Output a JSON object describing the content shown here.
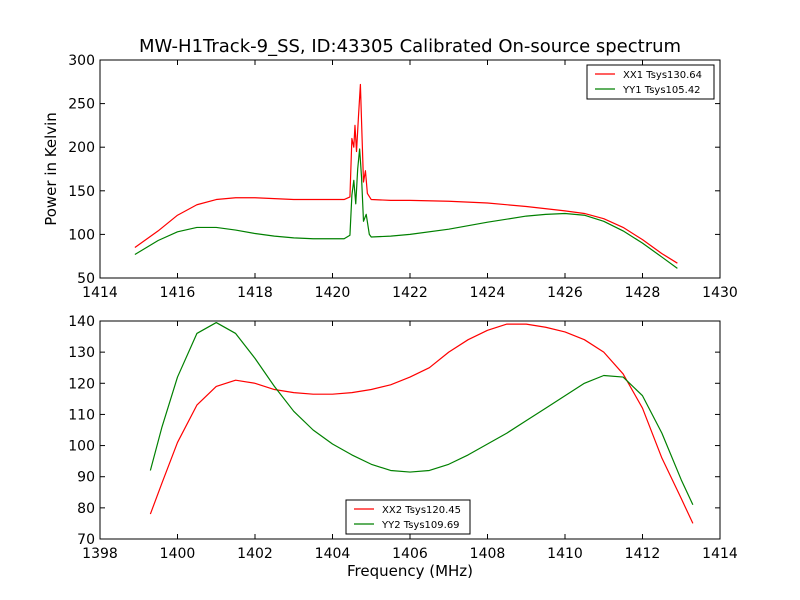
{
  "colors": {
    "xx": "#ff0000",
    "yy": "#008000"
  },
  "chart_data": [
    {
      "type": "line",
      "title": "MW-H1Track-9_SS, ID:43305 Calibrated On-source spectrum",
      "xlabel": "",
      "ylabel": "Power in Kelvin",
      "xlim": [
        1414,
        1430
      ],
      "ylim": [
        50,
        300
      ],
      "xticks": [
        1414,
        1416,
        1418,
        1420,
        1422,
        1424,
        1426,
        1428,
        1430
      ],
      "yticks": [
        50,
        100,
        150,
        200,
        250,
        300
      ],
      "legend_position": "top-right",
      "series": [
        {
          "name": "XX1 Tsys130.64",
          "color": "#ff0000",
          "points": [
            [
              1414.9,
              85
            ],
            [
              1415.5,
              104
            ],
            [
              1416.0,
              122
            ],
            [
              1416.5,
              134
            ],
            [
              1417.0,
              140
            ],
            [
              1417.5,
              142
            ],
            [
              1418.0,
              142
            ],
            [
              1418.5,
              141
            ],
            [
              1419.0,
              140
            ],
            [
              1419.5,
              140
            ],
            [
              1420.0,
              140
            ],
            [
              1420.3,
              140
            ],
            [
              1420.45,
              143
            ],
            [
              1420.5,
              210
            ],
            [
              1420.55,
              200
            ],
            [
              1420.58,
              225
            ],
            [
              1420.62,
              195
            ],
            [
              1420.67,
              235
            ],
            [
              1420.72,
              272
            ],
            [
              1420.76,
              215
            ],
            [
              1420.8,
              160
            ],
            [
              1420.85,
              173
            ],
            [
              1420.9,
              147
            ],
            [
              1421.0,
              140
            ],
            [
              1421.5,
              139
            ],
            [
              1422.0,
              139
            ],
            [
              1423.0,
              138
            ],
            [
              1424.0,
              136
            ],
            [
              1425.0,
              132
            ],
            [
              1426.0,
              127
            ],
            [
              1426.5,
              124
            ],
            [
              1427.0,
              118
            ],
            [
              1427.5,
              108
            ],
            [
              1428.0,
              94
            ],
            [
              1428.5,
              78
            ],
            [
              1428.9,
              67
            ]
          ]
        },
        {
          "name": "YY1 Tsys105.42",
          "color": "#008000",
          "points": [
            [
              1414.9,
              77
            ],
            [
              1415.5,
              93
            ],
            [
              1416.0,
              103
            ],
            [
              1416.5,
              108
            ],
            [
              1417.0,
              108
            ],
            [
              1417.5,
              105
            ],
            [
              1418.0,
              101
            ],
            [
              1418.5,
              98
            ],
            [
              1419.0,
              96
            ],
            [
              1419.5,
              95
            ],
            [
              1420.0,
              95
            ],
            [
              1420.3,
              95
            ],
            [
              1420.45,
              99
            ],
            [
              1420.5,
              145
            ],
            [
              1420.55,
              162
            ],
            [
              1420.6,
              135
            ],
            [
              1420.65,
              175
            ],
            [
              1420.7,
              198
            ],
            [
              1420.75,
              165
            ],
            [
              1420.8,
              115
            ],
            [
              1420.87,
              123
            ],
            [
              1420.95,
              100
            ],
            [
              1421.0,
              97
            ],
            [
              1421.5,
              98
            ],
            [
              1422.0,
              100
            ],
            [
              1423.0,
              106
            ],
            [
              1424.0,
              114
            ],
            [
              1425.0,
              121
            ],
            [
              1425.5,
              123
            ],
            [
              1426.0,
              124
            ],
            [
              1426.5,
              122
            ],
            [
              1427.0,
              115
            ],
            [
              1427.5,
              104
            ],
            [
              1428.0,
              90
            ],
            [
              1428.5,
              74
            ],
            [
              1428.9,
              61
            ]
          ]
        }
      ]
    },
    {
      "type": "line",
      "title": "",
      "xlabel": "Frequency (MHz)",
      "ylabel": "",
      "xlim": [
        1398,
        1414
      ],
      "ylim": [
        70,
        140
      ],
      "xticks": [
        1398,
        1400,
        1402,
        1404,
        1406,
        1408,
        1410,
        1412,
        1414
      ],
      "yticks": [
        70,
        80,
        90,
        100,
        110,
        120,
        130,
        140
      ],
      "legend_position": "bottom-center",
      "series": [
        {
          "name": "XX2 Tsys120.45",
          "color": "#ff0000",
          "points": [
            [
              1399.3,
              78
            ],
            [
              1399.6,
              88
            ],
            [
              1400.0,
              101
            ],
            [
              1400.5,
              113
            ],
            [
              1401.0,
              119
            ],
            [
              1401.5,
              121
            ],
            [
              1402.0,
              120
            ],
            [
              1402.5,
              118
            ],
            [
              1403.0,
              117
            ],
            [
              1403.5,
              116.5
            ],
            [
              1404.0,
              116.5
            ],
            [
              1404.5,
              117
            ],
            [
              1405.0,
              118
            ],
            [
              1405.5,
              119.5
            ],
            [
              1406.0,
              122
            ],
            [
              1406.5,
              125
            ],
            [
              1407.0,
              130
            ],
            [
              1407.5,
              134
            ],
            [
              1408.0,
              137
            ],
            [
              1408.5,
              139
            ],
            [
              1409.0,
              139
            ],
            [
              1409.5,
              138
            ],
            [
              1410.0,
              136.5
            ],
            [
              1410.5,
              134
            ],
            [
              1411.0,
              130
            ],
            [
              1411.5,
              123
            ],
            [
              1412.0,
              112
            ],
            [
              1412.5,
              96
            ],
            [
              1413.0,
              83
            ],
            [
              1413.3,
              75
            ]
          ]
        },
        {
          "name": "YY2 Tsys109.69",
          "color": "#008000",
          "points": [
            [
              1399.3,
              92
            ],
            [
              1399.6,
              106
            ],
            [
              1400.0,
              122
            ],
            [
              1400.5,
              136
            ],
            [
              1401.0,
              139.5
            ],
            [
              1401.5,
              136
            ],
            [
              1402.0,
              128
            ],
            [
              1402.5,
              119
            ],
            [
              1403.0,
              111
            ],
            [
              1403.5,
              105
            ],
            [
              1404.0,
              100.5
            ],
            [
              1404.5,
              97
            ],
            [
              1405.0,
              94
            ],
            [
              1405.5,
              92
            ],
            [
              1406.0,
              91.5
            ],
            [
              1406.5,
              92
            ],
            [
              1407.0,
              94
            ],
            [
              1407.5,
              97
            ],
            [
              1408.0,
              100.5
            ],
            [
              1408.5,
              104
            ],
            [
              1409.0,
              108
            ],
            [
              1409.5,
              112
            ],
            [
              1410.0,
              116
            ],
            [
              1410.5,
              120
            ],
            [
              1411.0,
              122.5
            ],
            [
              1411.5,
              122
            ],
            [
              1412.0,
              116
            ],
            [
              1412.5,
              104
            ],
            [
              1413.0,
              89
            ],
            [
              1413.3,
              81
            ]
          ]
        }
      ]
    }
  ]
}
